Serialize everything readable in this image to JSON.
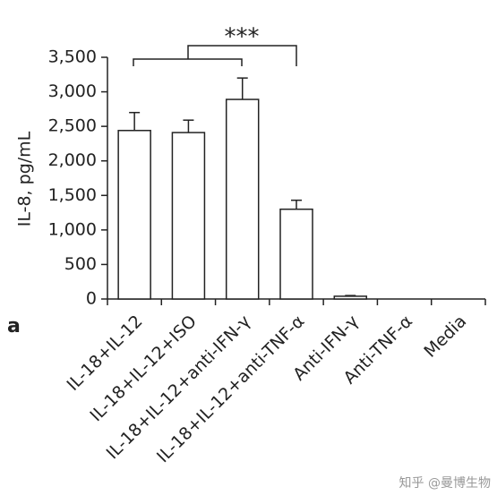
{
  "chart_data": {
    "type": "bar",
    "y_label": "IL-8, pg/mL",
    "panel_label": "a",
    "annotation": "***",
    "watermark": "知乎 @曼博生物",
    "categories": [
      "IL-18+IL-12",
      "IL-18+IL-12+ISO",
      "IL-18+IL-12+anti-IFN-γ",
      "IL-18+IL-12+anti-TNF-α",
      "Anti-IFN-γ",
      "Anti-TNF-α",
      "Media"
    ],
    "values": [
      2440,
      2410,
      2890,
      1300,
      40,
      0,
      0
    ],
    "errors": [
      260,
      180,
      310,
      130,
      10,
      0,
      0
    ],
    "color": "#ffffff",
    "ylim": [
      0,
      3500
    ],
    "yticks": [
      0,
      500,
      {
        "value": 1000,
        "label": "1,000"
      },
      {
        "value": 1500,
        "label": "1,500"
      },
      {
        "value": 2000,
        "label": "2,000"
      },
      {
        "value": 2500,
        "label": "2,500"
      },
      {
        "value": 3000,
        "label": "3,000"
      },
      {
        "value": 3500,
        "label": "3,500"
      }
    ]
  }
}
